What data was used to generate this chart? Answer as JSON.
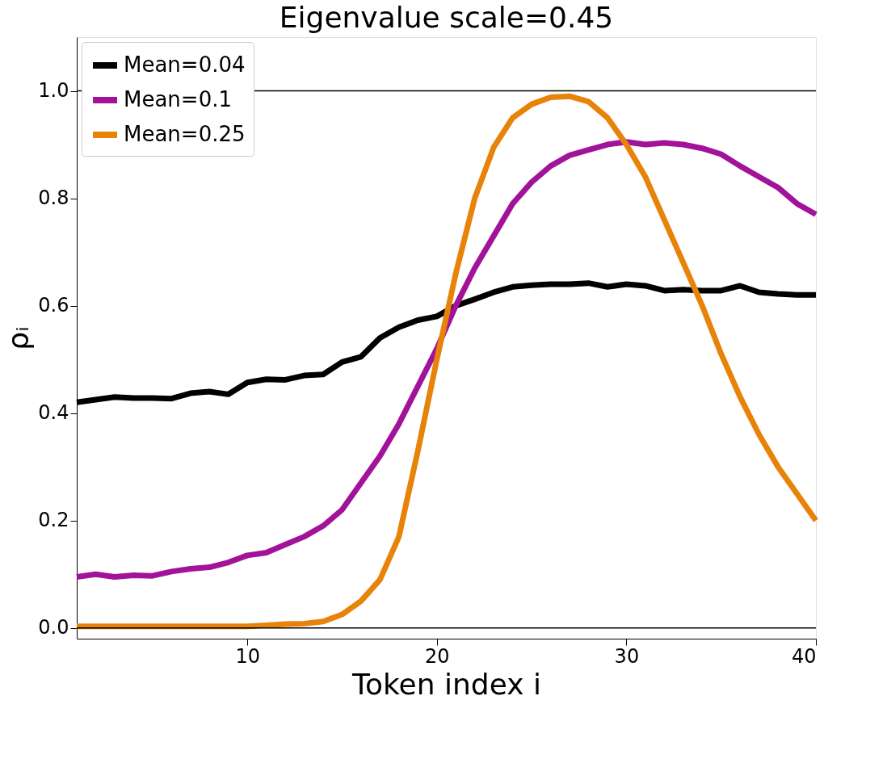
{
  "chart_data": {
    "type": "line",
    "title": "Eigenvalue scale=0.45",
    "xlabel": "Token index i",
    "ylabel": "ρᵢ",
    "x": [
      1,
      2,
      3,
      4,
      5,
      6,
      7,
      8,
      9,
      10,
      11,
      12,
      13,
      14,
      15,
      16,
      17,
      18,
      19,
      20,
      21,
      22,
      23,
      24,
      25,
      26,
      27,
      28,
      29,
      30,
      31,
      32,
      33,
      34,
      35,
      36,
      37,
      38,
      39,
      40
    ],
    "series": [
      {
        "name": "Mean=0.04",
        "color": "#000000",
        "values": [
          0.42,
          0.425,
          0.43,
          0.428,
          0.428,
          0.427,
          0.437,
          0.44,
          0.435,
          0.457,
          0.463,
          0.462,
          0.47,
          0.472,
          0.495,
          0.505,
          0.54,
          0.56,
          0.573,
          0.58,
          0.6,
          0.612,
          0.625,
          0.635,
          0.638,
          0.64,
          0.64,
          0.642,
          0.635,
          0.64,
          0.637,
          0.628,
          0.63,
          0.628,
          0.628,
          0.637,
          0.625,
          0.622,
          0.62,
          0.62
        ]
      },
      {
        "name": "Mean=0.1",
        "color": "#a2139a",
        "values": [
          0.095,
          0.1,
          0.095,
          0.098,
          0.097,
          0.105,
          0.11,
          0.113,
          0.122,
          0.135,
          0.14,
          0.155,
          0.17,
          0.19,
          0.22,
          0.27,
          0.32,
          0.38,
          0.45,
          0.52,
          0.6,
          0.67,
          0.73,
          0.79,
          0.83,
          0.86,
          0.88,
          0.89,
          0.9,
          0.905,
          0.9,
          0.903,
          0.9,
          0.893,
          0.882,
          0.86,
          0.84,
          0.82,
          0.79,
          0.77
        ]
      },
      {
        "name": "Mean=0.25",
        "color": "#e8830a",
        "values": [
          0.003,
          0.003,
          0.003,
          0.003,
          0.003,
          0.003,
          0.003,
          0.003,
          0.003,
          0.003,
          0.005,
          0.007,
          0.008,
          0.012,
          0.025,
          0.05,
          0.09,
          0.17,
          0.33,
          0.5,
          0.66,
          0.8,
          0.895,
          0.95,
          0.975,
          0.988,
          0.99,
          0.98,
          0.95,
          0.9,
          0.84,
          0.76,
          0.68,
          0.6,
          0.51,
          0.43,
          0.36,
          0.3,
          0.25,
          0.2
        ]
      }
    ],
    "xlim": [
      1,
      40
    ],
    "xticks": [
      10,
      20,
      30,
      40
    ],
    "ylim": [
      -0.02,
      1.1
    ],
    "yticks": [
      {
        "value": 0,
        "label": "0.0"
      },
      0.2,
      0.4,
      0.6,
      0.8,
      {
        "value": 1,
        "label": "1.0"
      }
    ],
    "ref_lines": [
      {
        "axis": "y",
        "value": 0,
        "color": "#000000"
      },
      {
        "axis": "y",
        "value": 1.0,
        "color": "#000000"
      }
    ],
    "legend": "top left",
    "grid": false,
    "marker": "none",
    "line_style": "solid"
  }
}
